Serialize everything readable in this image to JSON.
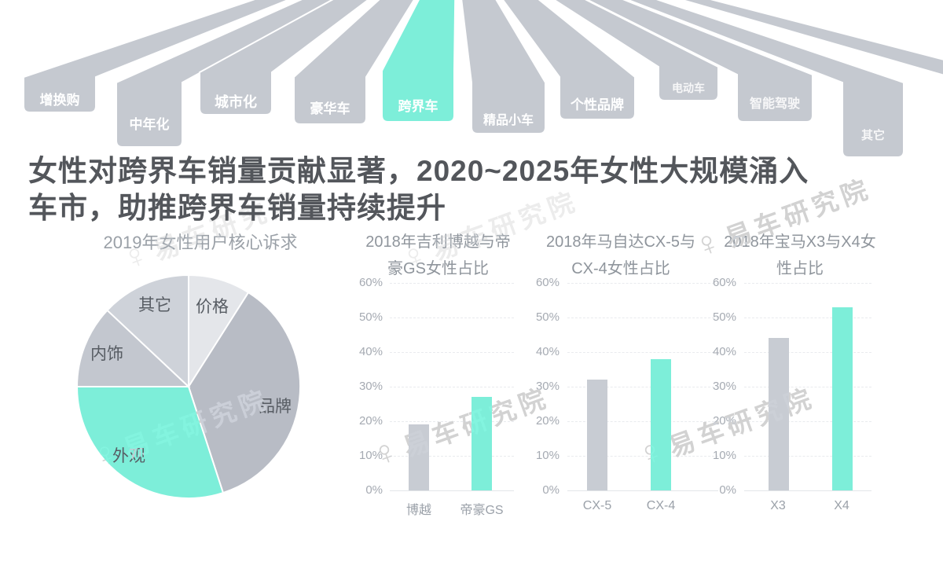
{
  "fan": {
    "tags": [
      {
        "label": "增换购",
        "highlighted": false
      },
      {
        "label": "中年化",
        "highlighted": false
      },
      {
        "label": "城市化",
        "highlighted": false
      },
      {
        "label": "豪华车",
        "highlighted": false
      },
      {
        "label": "跨界车",
        "highlighted": true
      },
      {
        "label": "精品小车",
        "highlighted": false
      },
      {
        "label": "个性品牌",
        "highlighted": false
      },
      {
        "label": "电动车",
        "highlighted": false
      },
      {
        "label": "智能驾驶",
        "highlighted": false
      },
      {
        "label": "其它",
        "highlighted": false
      }
    ]
  },
  "headline": {
    "line1": "女性对跨界车销量贡献显著，2020~2025年女性大规模涌入",
    "line2": "车市，助推跨界车销量持续提升"
  },
  "watermark": {
    "icon": "female-symbol-gear-icon",
    "text": "易车研究院"
  },
  "colors": {
    "accent_teal": "#7deed9",
    "ribbon_gray": "#c5c9d0",
    "bar_gray": "#c8ccd3",
    "headline_text": "#53565b",
    "chart_title_text": "#8f959c",
    "axis_tick_text": "#a5aab2",
    "pie_label_text": "#575c63",
    "watermark_gray": "#cdd0d5"
  },
  "chart_data": [
    {
      "type": "pie",
      "title": "2019年女性用户核心诉求",
      "labels": [
        "价格",
        "品牌",
        "外观",
        "内饰",
        "其它"
      ],
      "values": [
        9,
        36,
        30,
        12,
        13
      ],
      "colors": [
        "#e4e6ea",
        "#b8bcc5",
        "#7deed9",
        "#c3c7cf",
        "#ced2d9"
      ],
      "start_angle_deg": 0,
      "direction": "clockwise",
      "labels_on_slices": true
    },
    {
      "type": "bar",
      "title": "2018年吉利博越与帝豪GS女性占比",
      "title_line1": "2018年吉利博越与帝",
      "title_line2": "豪GS女性占比",
      "categories": [
        "博越",
        "帝豪GS"
      ],
      "values": [
        19,
        27
      ],
      "unit": "%",
      "ylim": [
        0,
        60
      ],
      "yticks": [
        "60%",
        "50%",
        "40%",
        "30%",
        "20%",
        "10%",
        "0%"
      ],
      "grid": true,
      "bar_colors": [
        "#c8ccd3",
        "#7deed9"
      ]
    },
    {
      "type": "bar",
      "title": "2018年马自达CX-5与CX-4女性占比",
      "title_line1": "2018年马自达CX-5与",
      "title_line2": "CX-4女性占比",
      "categories": [
        "CX-5",
        "CX-4"
      ],
      "values": [
        32,
        38
      ],
      "unit": "%",
      "ylim": [
        0,
        60
      ],
      "yticks": [
        "60%",
        "50%",
        "40%",
        "30%",
        "20%",
        "10%",
        "0%"
      ],
      "grid": true,
      "bar_colors": [
        "#c8ccd3",
        "#7deed9"
      ]
    },
    {
      "type": "bar",
      "title": "2018年宝马X3与X4女性占比",
      "title_line1": "2018年宝马X3与X4女",
      "title_line2": "性占比",
      "categories": [
        "X3",
        "X4"
      ],
      "values": [
        44,
        53
      ],
      "unit": "%",
      "ylim": [
        0,
        60
      ],
      "yticks": [
        "60%",
        "50%",
        "40%",
        "30%",
        "20%",
        "10%",
        "0%"
      ],
      "grid": true,
      "bar_colors": [
        "#c8ccd3",
        "#7deed9"
      ]
    }
  ]
}
